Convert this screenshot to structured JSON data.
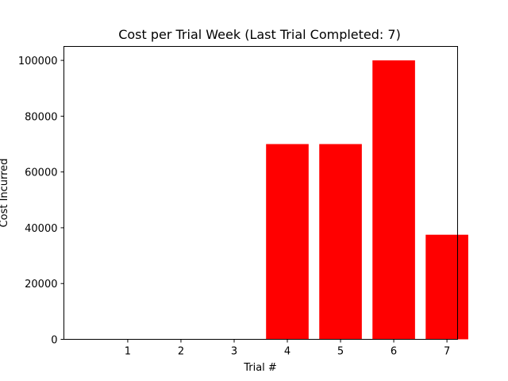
{
  "chart_data": {
    "type": "bar",
    "title": "Cost per Trial Week (Last Trial Completed: 7)",
    "xlabel": "Trial #",
    "ylabel": "Cost Incurred",
    "categories": [
      "1",
      "2",
      "3",
      "4",
      "5",
      "6",
      "7"
    ],
    "values": [
      0,
      0,
      0,
      70000,
      70000,
      100000,
      37500
    ],
    "ylim": [
      0,
      105000
    ],
    "yticks": [
      0,
      20000,
      40000,
      60000,
      80000,
      100000
    ],
    "ytick_labels": [
      "0",
      "20000",
      "40000",
      "60000",
      "80000",
      "100000"
    ],
    "bar_color": "#ff0000",
    "grid": false,
    "legend": "none"
  }
}
